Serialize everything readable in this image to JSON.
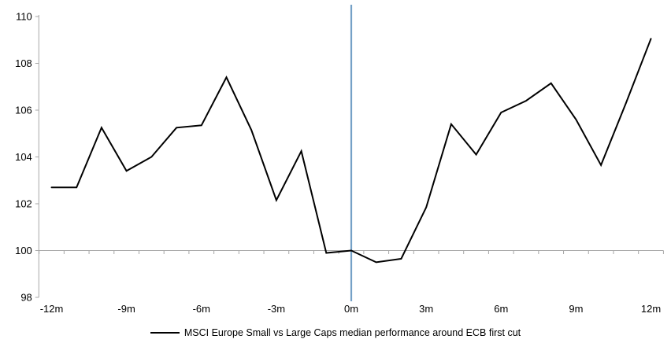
{
  "chart_data": {
    "type": "line",
    "title": "",
    "legend": "MSCI Europe Small vs Large Caps median performance around ECB first cut",
    "xlabel": "",
    "ylabel": "",
    "x": [
      -12,
      -11,
      -10,
      -9,
      -8,
      -7,
      -6,
      -5,
      -4,
      -3,
      -2,
      -1,
      0,
      1,
      2,
      3,
      4,
      5,
      6,
      7,
      8,
      9,
      10,
      11,
      12
    ],
    "series": [
      {
        "name": "MSCI Europe Small vs Large Caps median performance around ECB first cut",
        "color": "#000000",
        "values": [
          102.7,
          102.7,
          105.25,
          103.4,
          104.0,
          105.25,
          105.35,
          107.4,
          105.15,
          102.15,
          104.25,
          99.9,
          100.0,
          99.5,
          99.65,
          101.85,
          105.4,
          104.1,
          105.9,
          106.4,
          107.15,
          105.6,
          103.65,
          106.3,
          109.05
        ]
      }
    ],
    "x_axis": {
      "tick_labels": [
        "-12m",
        "-9m",
        "-6m",
        "-3m",
        "0m",
        "3m",
        "6m",
        "9m",
        "12m"
      ],
      "tick_label_positions": [
        -12,
        -9,
        -6,
        -3,
        0,
        3,
        6,
        9,
        12
      ],
      "range": [
        -12,
        12
      ],
      "crossing_value": 100
    },
    "y_axis": {
      "tick_labels": [
        "98",
        "100",
        "102",
        "104",
        "106",
        "108",
        "110"
      ],
      "ticks": [
        98,
        100,
        102,
        104,
        106,
        108,
        110
      ],
      "range": [
        98,
        110
      ]
    },
    "event_line": {
      "x": 0,
      "color": "#75a1c7"
    },
    "grid": "off",
    "legend_position": "bottom-center",
    "axis_color": "#a6a6a6",
    "label_color": "#000000"
  }
}
